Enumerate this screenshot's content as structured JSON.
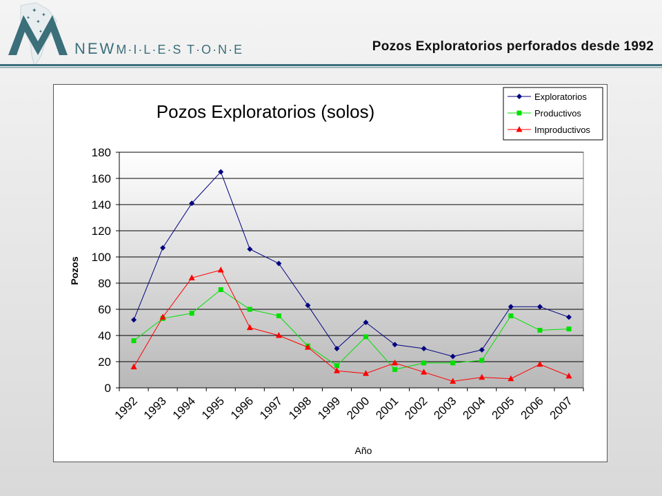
{
  "header": {
    "brand_new": "NEW",
    "brand_milestone": "M·I·L·E·S T·O·N·E",
    "slide_title": "Pozos Exploratorios perforados desde 1992"
  },
  "colors": {
    "exploratorios": "#000080",
    "productivos": "#00e000",
    "improductivos": "#ff0000",
    "brand_teal": "#3b6f7a"
  },
  "chart_data": {
    "type": "line",
    "title": "Pozos Exploratorios (solos)",
    "xlabel": "Año",
    "ylabel": "Pozos",
    "categories": [
      "1992",
      "1993",
      "1994",
      "1995",
      "1996",
      "1997",
      "1998",
      "1999",
      "2000",
      "2001",
      "2002",
      "2003",
      "2004",
      "2005",
      "2006",
      "2007"
    ],
    "ylim": [
      0,
      180
    ],
    "yticks": [
      0,
      20,
      40,
      60,
      80,
      100,
      120,
      140,
      160,
      180
    ],
    "grid": true,
    "legend_position": "top-right",
    "series": [
      {
        "name": "Exploratorios",
        "marker": "diamond",
        "color": "#000080",
        "values": [
          52,
          107,
          141,
          165,
          106,
          95,
          63,
          30,
          50,
          33,
          30,
          24,
          29,
          62,
          62,
          54
        ]
      },
      {
        "name": "Productivos",
        "marker": "square",
        "color": "#00e000",
        "values": [
          36,
          53,
          57,
          75,
          60,
          55,
          32,
          17,
          39,
          14,
          19,
          19,
          21,
          55,
          44,
          45
        ]
      },
      {
        "name": "Improductivos",
        "marker": "triangle",
        "color": "#ff0000",
        "values": [
          16,
          54,
          84,
          90,
          46,
          40,
          31,
          13,
          11,
          19,
          12,
          5,
          8,
          7,
          18,
          9
        ]
      }
    ]
  }
}
